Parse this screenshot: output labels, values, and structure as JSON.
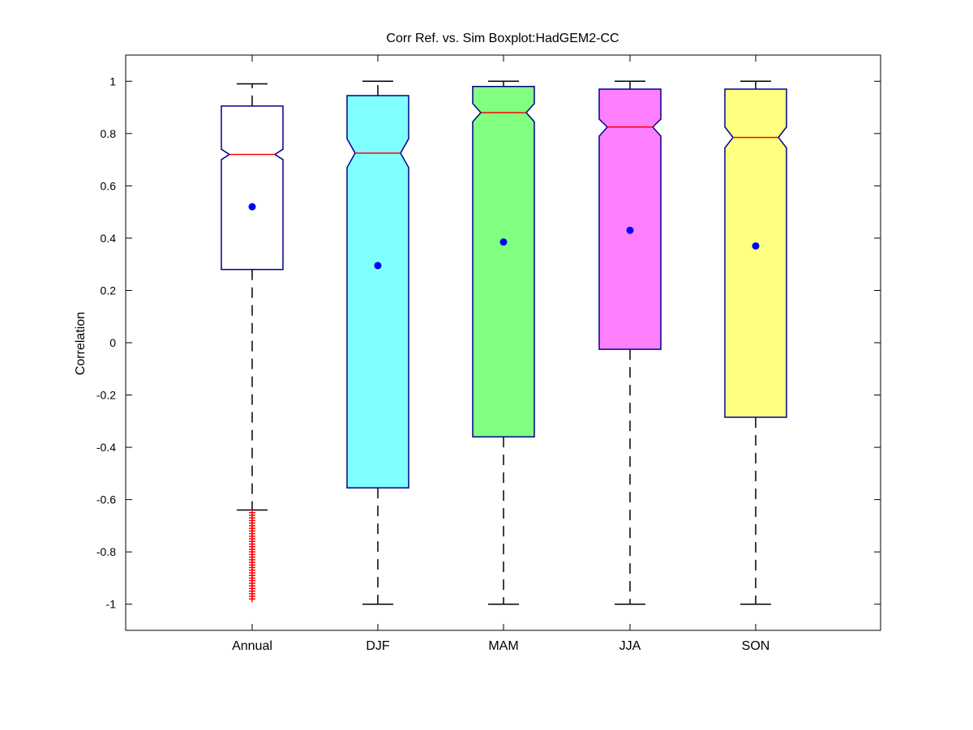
{
  "chart_data": {
    "type": "boxplot",
    "title": "Corr Ref. vs. Sim Boxplot:HadGEM2-CC",
    "xlabel": "",
    "ylabel": "Correlation",
    "ylim": [
      -1.1,
      1.1
    ],
    "yticks": [
      1,
      0.8,
      0.6,
      0.4,
      0.2,
      0,
      -0.2,
      -0.4,
      -0.6,
      -0.8,
      -1
    ],
    "ytick_labels": [
      "1",
      "0.8",
      "0.6",
      "0.4",
      "0.2",
      "0",
      "-0.2",
      "-0.4",
      "-0.6",
      "-0.8",
      "-1"
    ],
    "notched": true,
    "grid": false,
    "categories": [
      "Annual",
      "DJF",
      "MAM",
      "JJA",
      "SON"
    ],
    "boxes": [
      {
        "category": "Annual",
        "fill": "#ffffff",
        "whisker_low": -0.64,
        "q1": 0.28,
        "median": 0.72,
        "q3": 0.905,
        "whisker_high": 0.99,
        "notch_low": 0.7,
        "notch_high": 0.74,
        "mean": 0.52,
        "outliers": [
          -0.65,
          -0.66,
          -0.67,
          -0.68,
          -0.69,
          -0.7,
          -0.71,
          -0.72,
          -0.73,
          -0.74,
          -0.75,
          -0.76,
          -0.77,
          -0.78,
          -0.79,
          -0.8,
          -0.81,
          -0.82,
          -0.83,
          -0.84,
          -0.85,
          -0.86,
          -0.87,
          -0.88,
          -0.89,
          -0.9,
          -0.91,
          -0.92,
          -0.93,
          -0.94,
          -0.95,
          -0.96,
          -0.97,
          -0.98
        ]
      },
      {
        "category": "DJF",
        "fill": "#80ffff",
        "whisker_low": -1.0,
        "q1": -0.555,
        "median": 0.725,
        "q3": 0.945,
        "whisker_high": 1.0,
        "notch_low": 0.67,
        "notch_high": 0.78,
        "mean": 0.295,
        "outliers": []
      },
      {
        "category": "MAM",
        "fill": "#80ff80",
        "whisker_low": -1.0,
        "q1": -0.36,
        "median": 0.88,
        "q3": 0.98,
        "whisker_high": 1.0,
        "notch_low": 0.845,
        "notch_high": 0.915,
        "mean": 0.385,
        "outliers": []
      },
      {
        "category": "JJA",
        "fill": "#ff80ff",
        "whisker_low": -1.0,
        "q1": -0.025,
        "median": 0.825,
        "q3": 0.97,
        "whisker_high": 1.0,
        "notch_low": 0.79,
        "notch_high": 0.855,
        "mean": 0.43,
        "outliers": []
      },
      {
        "category": "SON",
        "fill": "#ffff80",
        "whisker_low": -1.0,
        "q1": -0.285,
        "median": 0.785,
        "q3": 0.97,
        "whisker_high": 1.0,
        "notch_low": 0.745,
        "notch_high": 0.825,
        "mean": 0.37,
        "outliers": []
      }
    ],
    "colors": {
      "box_edge": "#00008b",
      "median": "#ff0000",
      "mean_marker": "#0000ff",
      "outlier": "#ff0000",
      "whisker": "#000000",
      "axes": "#000000"
    }
  }
}
